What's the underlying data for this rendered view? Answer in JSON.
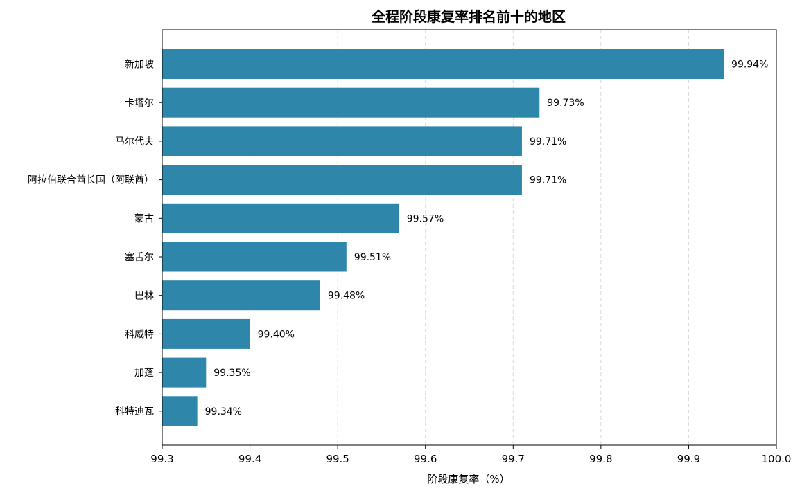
{
  "chart_data": {
    "type": "bar",
    "orientation": "horizontal",
    "title": "全程阶段康复率排名前十的地区",
    "xlabel": "阶段康复率（%）",
    "ylabel": "",
    "xlim": [
      99.3,
      100.0
    ],
    "xticks": [
      "99.3",
      "99.4",
      "99.5",
      "99.6",
      "99.7",
      "99.8",
      "99.9",
      "100.0"
    ],
    "grid": "x-dashed",
    "bar_color": "#2e86ab",
    "categories": [
      "新加坡",
      "卡塔尔",
      "马尔代夫",
      "阿拉伯联合酋长国（阿联酋）",
      "蒙古",
      "塞舌尔",
      "巴林",
      "科威特",
      "加蓬",
      "科特迪瓦"
    ],
    "values": [
      99.94,
      99.73,
      99.71,
      99.71,
      99.57,
      99.51,
      99.48,
      99.4,
      99.35,
      99.34
    ],
    "value_labels": [
      "99.94%",
      "99.73%",
      "99.71%",
      "99.71%",
      "99.57%",
      "99.51%",
      "99.48%",
      "99.40%",
      "99.35%",
      "99.34%"
    ]
  }
}
